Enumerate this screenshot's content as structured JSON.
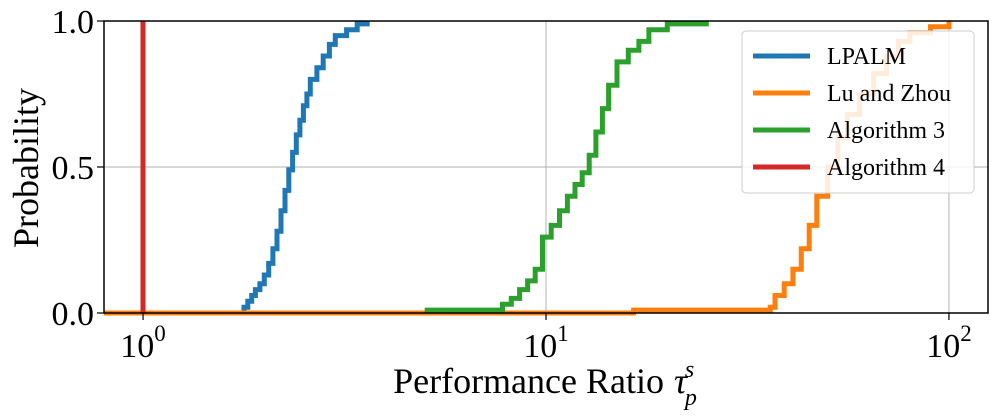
{
  "chart_data": {
    "type": "line",
    "title": "",
    "xlabel": "Performance Ratio",
    "xlabel_symbol": "τ",
    "xlabel_sub": "p",
    "xlabel_sup": "s",
    "ylabel": "Probability",
    "xscale": "log",
    "xlim": [
      0.8,
      125
    ],
    "ylim": [
      0,
      1
    ],
    "grid": true,
    "legend_position": "top-right",
    "xticks": [
      {
        "value": 1,
        "base": "10",
        "exp": "0"
      },
      {
        "value": 10,
        "base": "10",
        "exp": "1"
      },
      {
        "value": 100,
        "base": "10",
        "exp": "2"
      }
    ],
    "yticks": [
      {
        "value": 0,
        "label": "0.0"
      },
      {
        "value": 0.5,
        "label": "0.5"
      },
      {
        "value": 1,
        "label": "1.0"
      }
    ],
    "series": [
      {
        "name": "LPALM",
        "color": "#1f77b4",
        "x": [
          0.8,
          1.75,
          1.78,
          1.82,
          1.86,
          1.9,
          1.95,
          2.0,
          2.05,
          2.1,
          2.15,
          2.2,
          2.25,
          2.3,
          2.35,
          2.4,
          2.45,
          2.5,
          2.55,
          2.6,
          2.7,
          2.8,
          2.9,
          3.0,
          3.2,
          3.4,
          3.6
        ],
        "y": [
          0,
          0,
          0.02,
          0.04,
          0.06,
          0.08,
          0.1,
          0.13,
          0.17,
          0.22,
          0.28,
          0.35,
          0.42,
          0.49,
          0.55,
          0.61,
          0.66,
          0.71,
          0.75,
          0.8,
          0.84,
          0.88,
          0.92,
          0.95,
          0.97,
          0.99,
          1.0
        ]
      },
      {
        "name": "Lu and Zhou",
        "color": "#ff7f0e",
        "x": [
          0.8,
          16.5,
          30,
          36,
          37,
          39,
          41,
          43,
          45,
          47,
          50,
          53,
          56,
          60,
          65,
          70,
          75,
          80,
          90,
          100
        ],
        "y": [
          0,
          0.01,
          0.01,
          0.02,
          0.06,
          0.1,
          0.15,
          0.22,
          0.3,
          0.4,
          0.5,
          0.6,
          0.68,
          0.75,
          0.82,
          0.88,
          0.93,
          0.96,
          0.98,
          1.0
        ]
      },
      {
        "name": "Algorithm 3",
        "color": "#2ca02c",
        "x": [
          5.0,
          7.5,
          7.8,
          8.2,
          8.6,
          9.0,
          9.4,
          9.8,
          10.3,
          10.8,
          11.3,
          11.8,
          12.3,
          12.8,
          13.3,
          13.8,
          14.3,
          15.0,
          16.0,
          17.0,
          18.0,
          20.0,
          25.0
        ],
        "y": [
          0.01,
          0.01,
          0.03,
          0.05,
          0.08,
          0.11,
          0.15,
          0.26,
          0.3,
          0.35,
          0.4,
          0.44,
          0.48,
          0.54,
          0.62,
          0.7,
          0.78,
          0.86,
          0.9,
          0.93,
          0.97,
          0.99,
          1.0
        ]
      },
      {
        "name": "Algorithm 4",
        "color": "#d62728",
        "x": [
          1.0,
          1.0
        ],
        "y": [
          0,
          1.0
        ]
      }
    ]
  }
}
